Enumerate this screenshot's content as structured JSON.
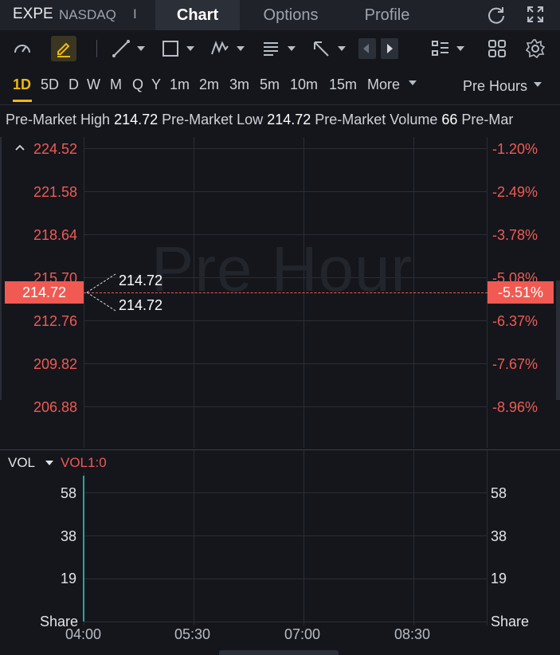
{
  "header": {
    "symbol": "EXPE",
    "exchange": "NASDAQ",
    "separator": "I",
    "tabs": [
      {
        "label": "Chart",
        "active": true
      },
      {
        "label": "Options",
        "active": false
      },
      {
        "label": "Profile",
        "active": false
      }
    ],
    "icons": [
      "refresh-icon",
      "fullscreen-icon"
    ]
  },
  "toolbar": {
    "icons": [
      "speedometer-icon",
      "draw-icon",
      "line-tool-icon",
      "rectangle-tool-icon",
      "pattern-tool-icon",
      "text-tool-icon",
      "arrow-tool-icon",
      "prev-icon",
      "next-icon",
      "indicators-icon",
      "layout-icon",
      "settings-icon"
    ]
  },
  "periods": {
    "items": [
      "1D",
      "5D",
      "D",
      "W",
      "M",
      "Q",
      "Y",
      "1m",
      "2m",
      "3m",
      "5m",
      "10m",
      "15m"
    ],
    "active": "1D",
    "more_label": "More",
    "session_label": "Pre Hours"
  },
  "info_bar": {
    "high_label": "Pre-Market High",
    "high_value": "214.72",
    "low_label": "Pre-Market Low",
    "low_value": "214.72",
    "volume_label": "Pre-Market Volume",
    "volume_value": "66",
    "trailing": "Pre-Mar"
  },
  "price_chart": {
    "watermark": "Pre Hour",
    "left_axis": [
      "224.52",
      "221.58",
      "218.64",
      "215.70",
      "212.76",
      "209.82",
      "206.88"
    ],
    "right_axis": [
      "-1.20%",
      "-2.49%",
      "-3.78%",
      "-5.08%",
      "-6.37%",
      "-7.67%",
      "-8.96%"
    ],
    "current_price": "214.72",
    "current_pct": "-5.51%",
    "callout_high": "214.72",
    "callout_low": "214.72",
    "colors": {
      "down": "#f05a52",
      "grid": "#2a2d35",
      "active": "#f0b90b"
    }
  },
  "volume_chart": {
    "label": "VOL",
    "indicator": "VOL1:0",
    "left_axis": [
      "58",
      "38",
      "19",
      "Share"
    ],
    "right_axis": [
      "58",
      "38",
      "19",
      "Share"
    ],
    "bar_color": "#26a69a"
  },
  "time_axis": [
    "04:00",
    "05:30",
    "07:00",
    "08:30"
  ]
}
